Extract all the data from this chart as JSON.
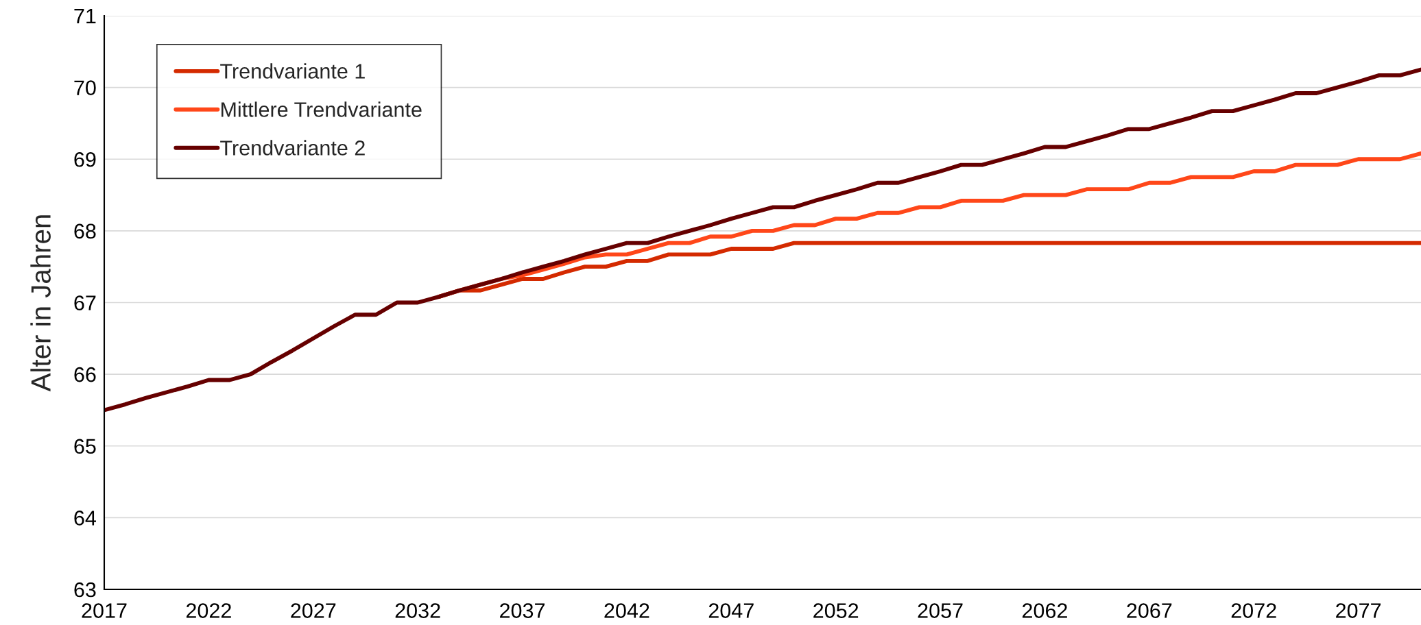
{
  "chart_data": {
    "type": "line",
    "ylabel": "Alter in Jahren",
    "x": [
      2017,
      2018,
      2019,
      2020,
      2021,
      2022,
      2023,
      2024,
      2025,
      2026,
      2027,
      2028,
      2029,
      2030,
      2031,
      2032,
      2033,
      2034,
      2035,
      2036,
      2037,
      2038,
      2039,
      2040,
      2041,
      2042,
      2043,
      2044,
      2045,
      2046,
      2047,
      2048,
      2049,
      2050,
      2051,
      2052,
      2053,
      2054,
      2055,
      2056,
      2057,
      2058,
      2059,
      2060,
      2061,
      2062,
      2063,
      2064,
      2065,
      2066,
      2067,
      2068,
      2069,
      2070,
      2071,
      2072,
      2073,
      2074,
      2075,
      2076,
      2077,
      2078,
      2079,
      2080
    ],
    "series": [
      {
        "name": "Trendvariante 1",
        "color": "#d42a00",
        "values": [
          null,
          null,
          null,
          null,
          null,
          null,
          null,
          null,
          null,
          null,
          null,
          null,
          null,
          null,
          null,
          null,
          67.08,
          67.17,
          67.17,
          67.25,
          67.33,
          67.33,
          67.42,
          67.5,
          67.5,
          67.58,
          67.58,
          67.67,
          67.67,
          67.67,
          67.75,
          67.75,
          67.75,
          67.83,
          67.83,
          67.83,
          67.83,
          67.83,
          67.83,
          67.83,
          67.83,
          67.83,
          67.83,
          67.83,
          67.83,
          67.83,
          67.83,
          67.83,
          67.83,
          67.83,
          67.83,
          67.83,
          67.83,
          67.83,
          67.83,
          67.83,
          67.83,
          67.83,
          67.83,
          67.83,
          67.83,
          67.83,
          67.83,
          67.83
        ]
      },
      {
        "name": "Mittlere Trendvariante",
        "color": "#ff4719",
        "values": [
          null,
          null,
          null,
          null,
          null,
          null,
          null,
          null,
          null,
          null,
          null,
          null,
          null,
          null,
          null,
          null,
          67.08,
          67.17,
          67.25,
          67.33,
          67.38,
          67.46,
          67.54,
          67.63,
          67.67,
          67.67,
          67.75,
          67.83,
          67.83,
          67.92,
          67.92,
          68.0,
          68.0,
          68.08,
          68.08,
          68.17,
          68.17,
          68.25,
          68.25,
          68.33,
          68.33,
          68.42,
          68.42,
          68.42,
          68.5,
          68.5,
          68.5,
          68.58,
          68.58,
          68.58,
          68.67,
          68.67,
          68.75,
          68.75,
          68.75,
          68.83,
          68.83,
          68.92,
          68.92,
          68.92,
          69.0,
          69.0,
          69.0,
          69.08
        ]
      },
      {
        "name": "Trendvariante 2",
        "color": "#660000",
        "values": [
          65.5,
          65.58,
          65.67,
          65.75,
          65.83,
          65.92,
          65.92,
          66.0,
          66.17,
          66.33,
          66.5,
          66.67,
          66.83,
          66.83,
          67.0,
          67.0,
          67.08,
          67.17,
          67.25,
          67.33,
          67.42,
          67.5,
          67.58,
          67.67,
          67.75,
          67.83,
          67.83,
          67.92,
          68.0,
          68.08,
          68.17,
          68.25,
          68.33,
          68.33,
          68.42,
          68.5,
          68.58,
          68.67,
          68.67,
          68.75,
          68.83,
          68.92,
          68.92,
          69.0,
          69.08,
          69.17,
          69.17,
          69.25,
          69.33,
          69.42,
          69.42,
          69.5,
          69.58,
          69.67,
          69.67,
          69.75,
          69.83,
          69.92,
          69.92,
          70.0,
          70.08,
          70.17,
          70.17,
          70.25
        ]
      }
    ],
    "xlim": [
      2017,
      2080
    ],
    "xticks": [
      2017,
      2022,
      2027,
      2032,
      2037,
      2042,
      2047,
      2052,
      2057,
      2062,
      2067,
      2072,
      2077
    ],
    "ylim": [
      63,
      71
    ],
    "yticks": [
      63,
      64,
      65,
      66,
      67,
      68,
      69,
      70,
      71
    ],
    "grid": "y",
    "legend": "top left",
    "marker": "none",
    "line_style": "solid"
  }
}
